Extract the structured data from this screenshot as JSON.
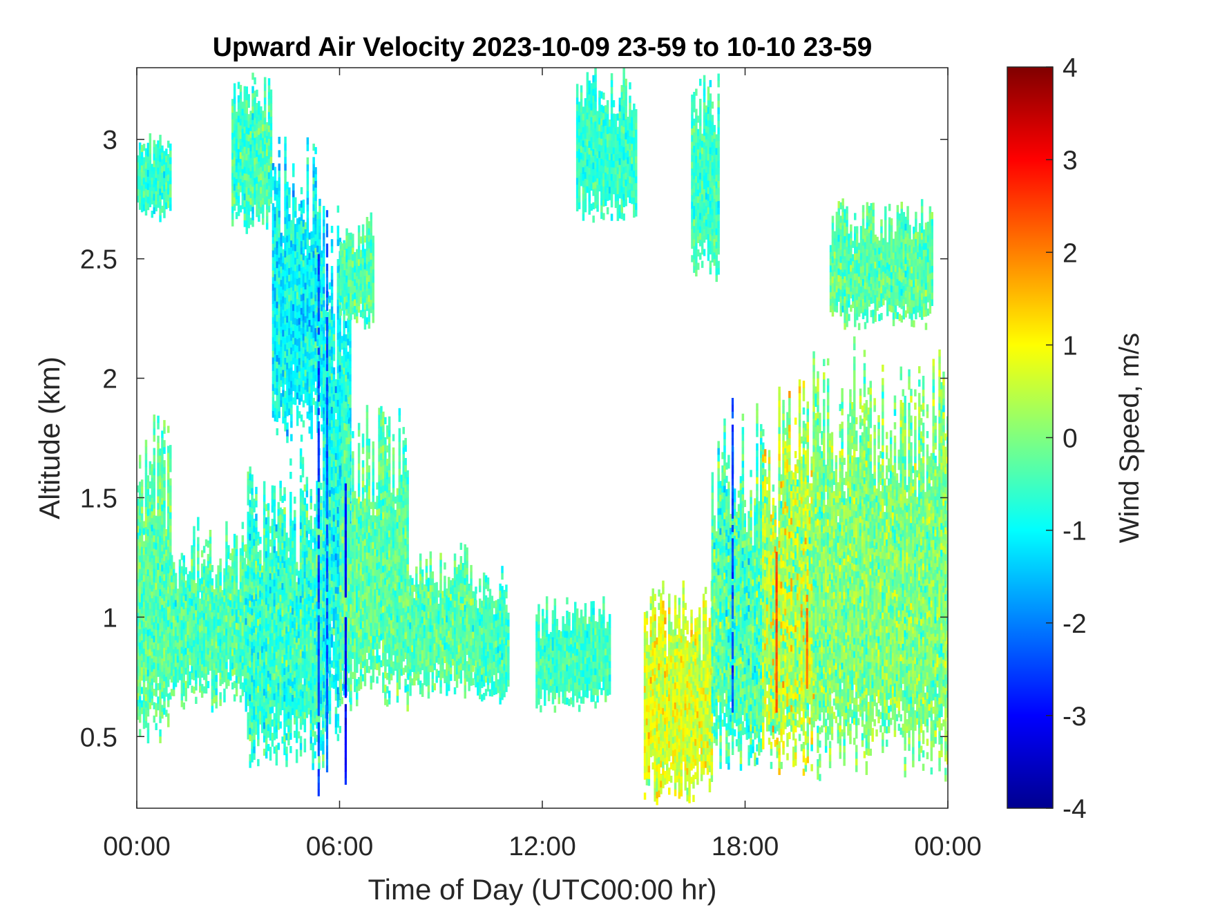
{
  "chart_data": {
    "type": "heatmap",
    "title": "Upward Air Velocity 2023-10-09 23-59 to 10-10 23-59",
    "xlabel": "Time of Day (UTC00:00 hr)",
    "ylabel": "Altitude (km)",
    "x_ticks": [
      "00:00",
      "06:00",
      "12:00",
      "18:00",
      "00:00"
    ],
    "x_tick_hours": [
      0,
      6,
      12,
      18,
      24
    ],
    "xlim_hours": [
      0,
      24
    ],
    "y_ticks": [
      0.5,
      1,
      1.5,
      2,
      2.5,
      3
    ],
    "ylim": [
      0.2,
      3.3
    ],
    "colorbar": {
      "label": "Wind Speed, m/s",
      "ticks": [
        -4,
        -3,
        -2,
        -1,
        0,
        1,
        2,
        3,
        4
      ],
      "range": [
        -4,
        4
      ],
      "colormap": "jet"
    },
    "grid": false,
    "regions": [
      {
        "t0": 0.0,
        "t1": 1.0,
        "z0": 0.45,
        "z1": 1.85,
        "mean": -0.3,
        "spread": 0.6
      },
      {
        "t0": 0.0,
        "t1": 1.0,
        "z0": 2.65,
        "z1": 3.05,
        "mean": -0.6,
        "spread": 0.6
      },
      {
        "t0": 1.0,
        "t1": 3.2,
        "z0": 0.6,
        "z1": 1.4,
        "mean": -0.4,
        "spread": 0.6
      },
      {
        "t0": 2.8,
        "t1": 4.0,
        "z0": 2.6,
        "z1": 3.3,
        "mean": -0.5,
        "spread": 0.6
      },
      {
        "t0": 3.2,
        "t1": 5.5,
        "z0": 0.35,
        "z1": 1.7,
        "mean": -0.6,
        "spread": 0.7
      },
      {
        "t0": 4.0,
        "t1": 5.5,
        "z0": 1.7,
        "z1": 3.0,
        "mean": -1.0,
        "spread": 0.7
      },
      {
        "t0": 5.5,
        "t1": 6.3,
        "z0": 0.4,
        "z1": 2.7,
        "mean": -0.9,
        "spread": 0.7
      },
      {
        "t0": 6.0,
        "t1": 7.0,
        "z0": 2.2,
        "z1": 2.7,
        "mean": -0.4,
        "spread": 0.6
      },
      {
        "t0": 6.0,
        "t1": 8.0,
        "z0": 0.6,
        "z1": 1.9,
        "mean": -0.3,
        "spread": 0.6
      },
      {
        "t0": 8.0,
        "t1": 10.0,
        "z0": 0.65,
        "z1": 1.3,
        "mean": -0.3,
        "spread": 0.6
      },
      {
        "t0": 10.0,
        "t1": 11.0,
        "z0": 0.6,
        "z1": 1.2,
        "mean": -0.5,
        "spread": 0.5
      },
      {
        "t0": 11.8,
        "t1": 14.0,
        "z0": 0.6,
        "z1": 1.1,
        "mean": -0.5,
        "spread": 0.5
      },
      {
        "t0": 13.0,
        "t1": 14.8,
        "z0": 2.65,
        "z1": 3.3,
        "mean": -0.6,
        "spread": 0.5
      },
      {
        "t0": 15.0,
        "t1": 17.0,
        "z0": 0.2,
        "z1": 1.15,
        "mean": 0.7,
        "spread": 0.7
      },
      {
        "t0": 16.4,
        "t1": 17.2,
        "z0": 2.4,
        "z1": 3.3,
        "mean": -0.5,
        "spread": 0.5
      },
      {
        "t0": 17.0,
        "t1": 18.5,
        "z0": 0.3,
        "z1": 1.9,
        "mean": -0.4,
        "spread": 0.8
      },
      {
        "t0": 18.5,
        "t1": 20.0,
        "z0": 0.3,
        "z1": 2.0,
        "mean": 0.4,
        "spread": 1.0
      },
      {
        "t0": 20.0,
        "t1": 24.0,
        "z0": 0.3,
        "z1": 2.2,
        "mean": 0.0,
        "spread": 0.7
      },
      {
        "t0": 20.5,
        "t1": 23.5,
        "z0": 2.2,
        "z1": 2.75,
        "mean": -0.3,
        "spread": 0.6
      }
    ],
    "streaks": [
      {
        "t": 5.35,
        "z0": 0.25,
        "z1": 2.5,
        "value": -2.4
      },
      {
        "t": 5.6,
        "z0": 0.35,
        "z1": 2.7,
        "value": -2.2
      },
      {
        "t": 6.15,
        "z0": 0.27,
        "z1": 1.55,
        "value": -3.0
      },
      {
        "t": 17.6,
        "z0": 0.6,
        "z1": 1.9,
        "value": -2.4
      },
      {
        "t": 18.9,
        "z0": 0.6,
        "z1": 1.25,
        "value": 2.3
      },
      {
        "t": 19.8,
        "z0": 0.7,
        "z1": 1.1,
        "value": 2.0
      }
    ]
  }
}
